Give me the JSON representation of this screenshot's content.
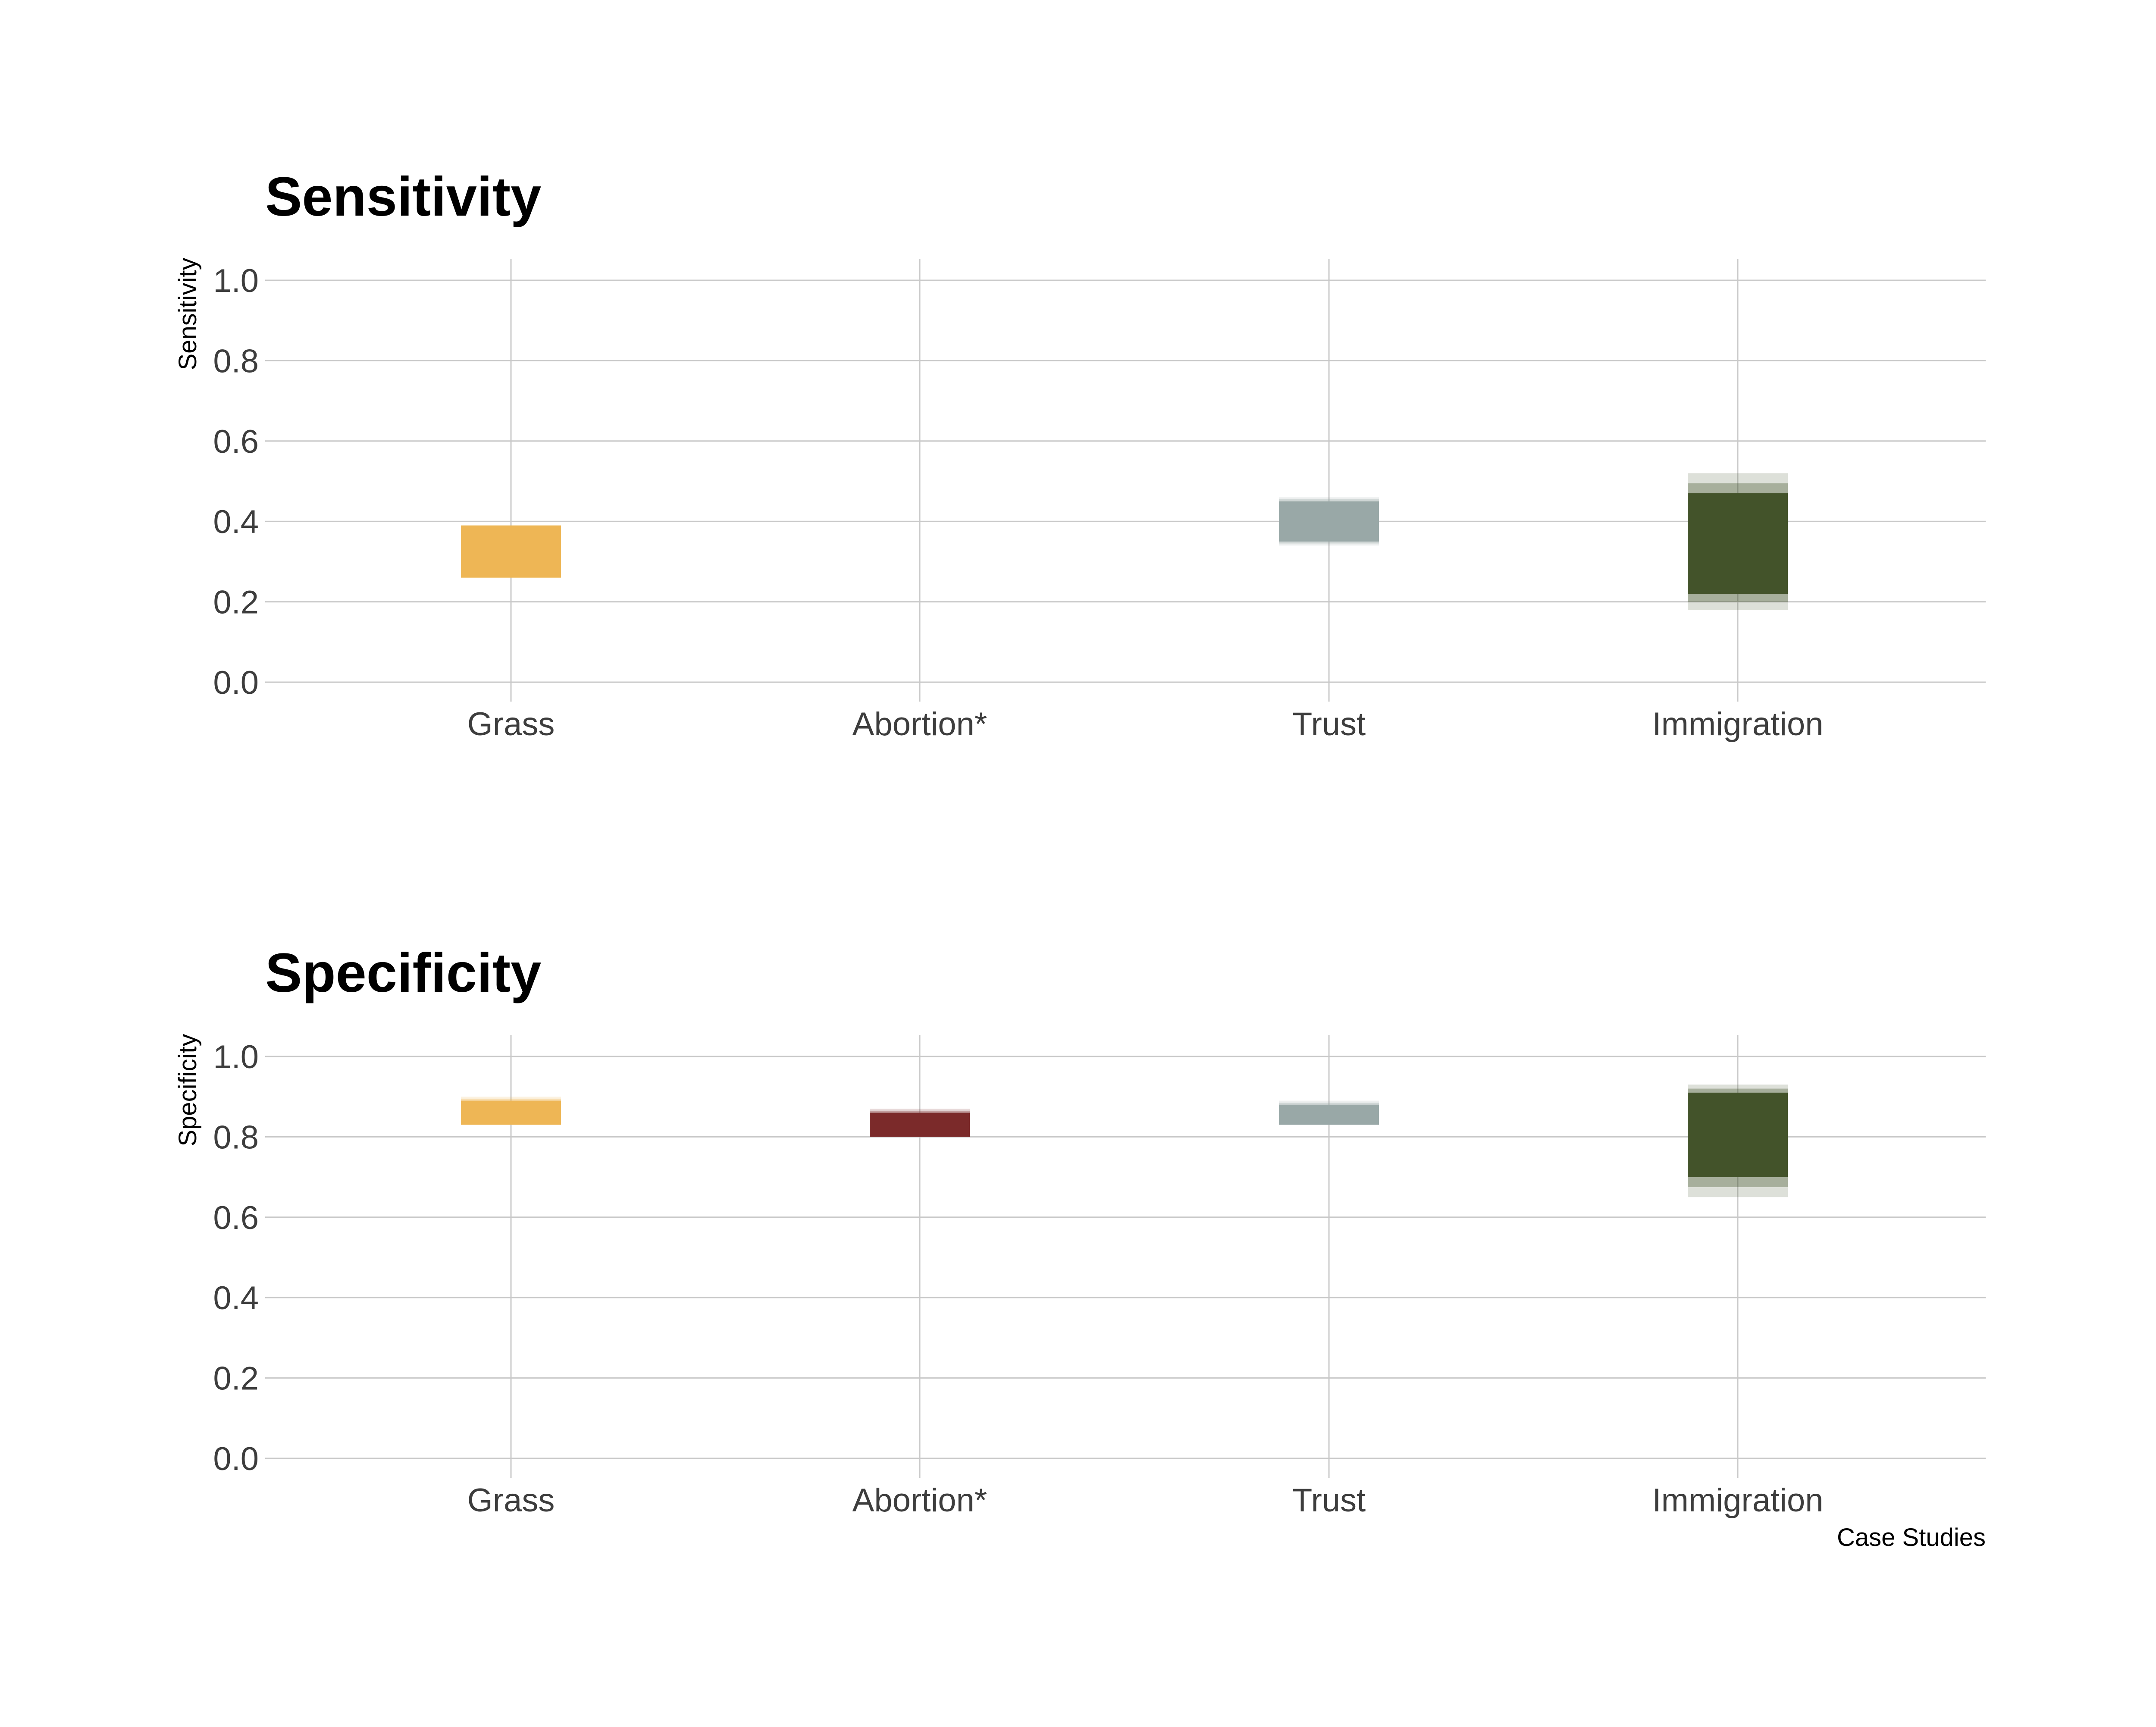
{
  "chart_data": [
    {
      "type": "bar",
      "title": "Sensitivity",
      "ylabel": "Sensitivity",
      "xlabel": "",
      "ylim": [
        0,
        1.05
      ],
      "yticks": [
        "0.0",
        "0.2",
        "0.4",
        "0.6",
        "0.8",
        "1.0"
      ],
      "categories": [
        "Grass",
        "Abortion*",
        "Trust",
        "Immigration"
      ],
      "ranges": [
        {
          "category": "Grass",
          "low": 0.26,
          "high": 0.39,
          "outer_low": 0.26,
          "outer_high": 0.39,
          "color": "#EEB655"
        },
        {
          "category": "Abortion*",
          "low": null,
          "high": null,
          "outer_low": null,
          "outer_high": null,
          "color": "#7B2A2A"
        },
        {
          "category": "Trust",
          "low": 0.35,
          "high": 0.45,
          "outer_low": 0.34,
          "outer_high": 0.46,
          "color": "#99A8A7"
        },
        {
          "category": "Immigration",
          "low": 0.22,
          "high": 0.47,
          "outer_low": 0.18,
          "outer_high": 0.52,
          "color": "#43532A"
        }
      ],
      "grid": true,
      "legend": "none"
    },
    {
      "type": "bar",
      "title": "Specificity",
      "ylabel": "Specificity",
      "xlabel": "Case Studies",
      "ylim": [
        0,
        1.05
      ],
      "yticks": [
        "0.0",
        "0.2",
        "0.4",
        "0.6",
        "0.8",
        "1.0"
      ],
      "categories": [
        "Grass",
        "Abortion*",
        "Trust",
        "Immigration"
      ],
      "ranges": [
        {
          "category": "Grass",
          "low": 0.83,
          "high": 0.89,
          "outer_low": 0.83,
          "outer_high": 0.9,
          "color": "#EEB655"
        },
        {
          "category": "Abortion*",
          "low": 0.8,
          "high": 0.86,
          "outer_low": 0.8,
          "outer_high": 0.87,
          "color": "#7B2A2A"
        },
        {
          "category": "Trust",
          "low": 0.83,
          "high": 0.88,
          "outer_low": 0.83,
          "outer_high": 0.89,
          "color": "#99A8A7"
        },
        {
          "category": "Immigration",
          "low": 0.7,
          "high": 0.91,
          "outer_low": 0.65,
          "outer_high": 0.93,
          "color": "#43532A"
        }
      ],
      "grid": true,
      "legend": "none"
    }
  ]
}
